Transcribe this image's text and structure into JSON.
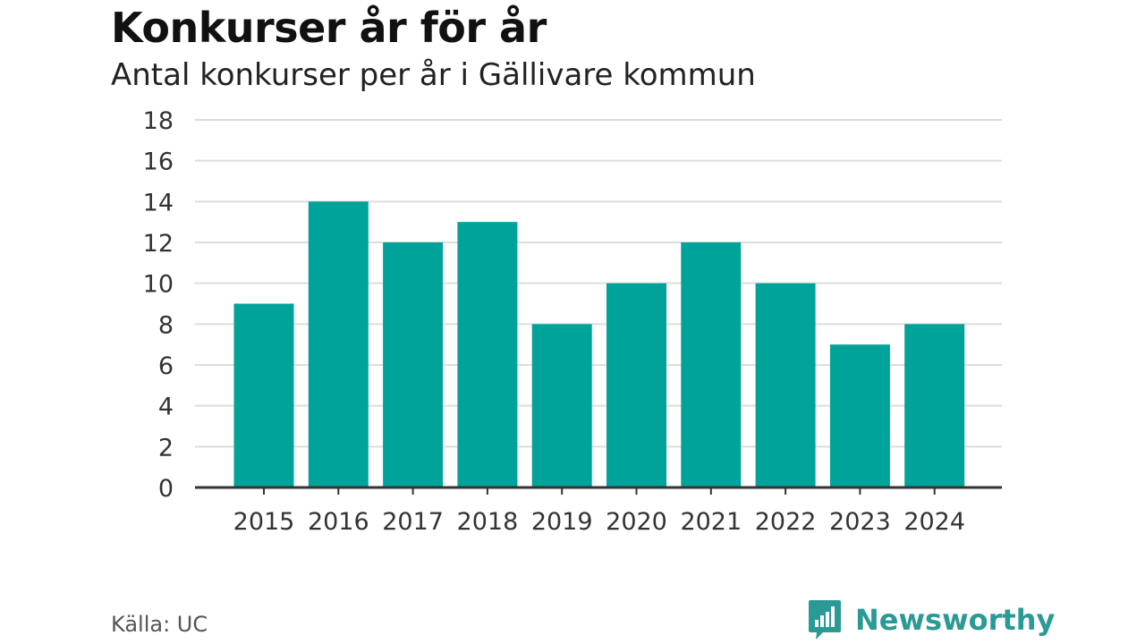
{
  "header": {
    "title": "Konkurser år för år",
    "subtitle": "Antal konkurser per år i Gällivare kommun"
  },
  "footer": {
    "source": "Källa: UC",
    "brand": "Newsworthy",
    "brand_icon": "bar-chart-speech-bubble-icon"
  },
  "colors": {
    "bar": "#00a39a",
    "grid": "#dddddd",
    "axis": "#333333",
    "brand": "#2b9a94"
  },
  "chart_data": {
    "type": "bar",
    "title": "Konkurser år för år",
    "subtitle": "Antal konkurser per år i Gällivare kommun",
    "xlabel": "",
    "ylabel": "",
    "categories": [
      "2015",
      "2016",
      "2017",
      "2018",
      "2019",
      "2020",
      "2021",
      "2022",
      "2023",
      "2024"
    ],
    "values": [
      9,
      14,
      12,
      13,
      8,
      10,
      12,
      10,
      7,
      8
    ],
    "ylim": [
      0,
      18
    ],
    "yticks": [
      0,
      2,
      4,
      6,
      8,
      10,
      12,
      14,
      16,
      18
    ],
    "grid": true,
    "legend": "none"
  }
}
